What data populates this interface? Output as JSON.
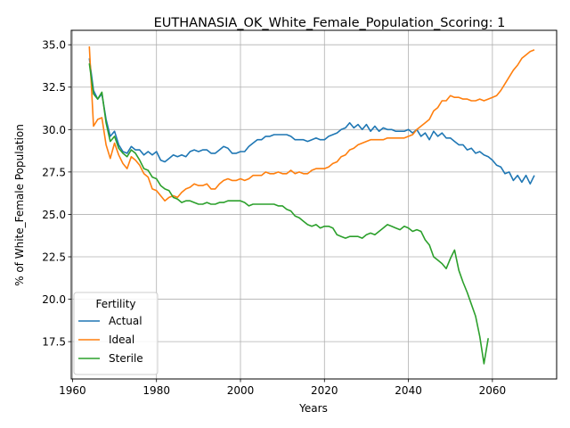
{
  "chart_data": {
    "type": "line",
    "title": "EUTHANASIA_OK_White_Female_Population_Scoring: 1",
    "xlabel": "Years",
    "ylabel": "% of White_Female Population",
    "xlim": [
      1959.7,
      2075.3
    ],
    "ylim": [
      15.3,
      35.85
    ],
    "xticks": [
      1960,
      1980,
      2000,
      2020,
      2040,
      2060
    ],
    "yticks": [
      17.5,
      20.0,
      22.5,
      25.0,
      27.5,
      30.0,
      32.5,
      35.0
    ],
    "ytick_labels": [
      "17.5",
      "20.0",
      "22.5",
      "25.0",
      "27.5",
      "30.0",
      "32.5",
      "35.0"
    ],
    "grid": true,
    "legend": {
      "title": "Fertility",
      "placement": "lower-left"
    },
    "series": [
      {
        "name": "Actual",
        "color": "#1f77b4",
        "points": [
          [
            1964,
            34.2
          ],
          [
            1965,
            32.3
          ],
          [
            1966,
            31.8
          ],
          [
            1967,
            32.1
          ],
          [
            1968,
            30.6
          ],
          [
            1969,
            29.6
          ],
          [
            1970,
            29.9
          ],
          [
            1971,
            29.1
          ],
          [
            1972,
            28.7
          ],
          [
            1973,
            28.6
          ],
          [
            1974,
            29.0
          ],
          [
            1975,
            28.8
          ],
          [
            1976,
            28.8
          ],
          [
            1977,
            28.5
          ],
          [
            1978,
            28.7
          ],
          [
            1979,
            28.5
          ],
          [
            1980,
            28.7
          ],
          [
            1981,
            28.2
          ],
          [
            1982,
            28.1
          ],
          [
            1983,
            28.3
          ],
          [
            1984,
            28.5
          ],
          [
            1985,
            28.4
          ],
          [
            1986,
            28.5
          ],
          [
            1987,
            28.4
          ],
          [
            1988,
            28.7
          ],
          [
            1989,
            28.8
          ],
          [
            1990,
            28.7
          ],
          [
            1991,
            28.8
          ],
          [
            1992,
            28.8
          ],
          [
            1993,
            28.6
          ],
          [
            1994,
            28.6
          ],
          [
            1995,
            28.8
          ],
          [
            1996,
            29.0
          ],
          [
            1997,
            28.9
          ],
          [
            1998,
            28.6
          ],
          [
            1999,
            28.6
          ],
          [
            2000,
            28.7
          ],
          [
            2001,
            28.7
          ],
          [
            2002,
            29.0
          ],
          [
            2003,
            29.2
          ],
          [
            2004,
            29.4
          ],
          [
            2005,
            29.4
          ],
          [
            2006,
            29.6
          ],
          [
            2007,
            29.6
          ],
          [
            2008,
            29.7
          ],
          [
            2009,
            29.7
          ],
          [
            2010,
            29.7
          ],
          [
            2011,
            29.7
          ],
          [
            2012,
            29.6
          ],
          [
            2013,
            29.4
          ],
          [
            2014,
            29.4
          ],
          [
            2015,
            29.4
          ],
          [
            2016,
            29.3
          ],
          [
            2017,
            29.4
          ],
          [
            2018,
            29.5
          ],
          [
            2019,
            29.4
          ],
          [
            2020,
            29.4
          ],
          [
            2021,
            29.6
          ],
          [
            2022,
            29.7
          ],
          [
            2023,
            29.8
          ],
          [
            2024,
            30.0
          ],
          [
            2025,
            30.1
          ],
          [
            2026,
            30.4
          ],
          [
            2027,
            30.1
          ],
          [
            2028,
            30.3
          ],
          [
            2029,
            30.0
          ],
          [
            2030,
            30.3
          ],
          [
            2031,
            29.9
          ],
          [
            2032,
            30.2
          ],
          [
            2033,
            29.9
          ],
          [
            2034,
            30.1
          ],
          [
            2035,
            30.0
          ],
          [
            2036,
            30.0
          ],
          [
            2037,
            29.9
          ],
          [
            2038,
            29.9
          ],
          [
            2039,
            29.9
          ],
          [
            2040,
            30.0
          ],
          [
            2041,
            29.8
          ],
          [
            2042,
            30.0
          ],
          [
            2043,
            29.6
          ],
          [
            2044,
            29.8
          ],
          [
            2045,
            29.4
          ],
          [
            2046,
            29.9
          ],
          [
            2047,
            29.6
          ],
          [
            2048,
            29.8
          ],
          [
            2049,
            29.5
          ],
          [
            2050,
            29.5
          ],
          [
            2051,
            29.3
          ],
          [
            2052,
            29.1
          ],
          [
            2053,
            29.1
          ],
          [
            2054,
            28.8
          ],
          [
            2055,
            28.9
          ],
          [
            2056,
            28.6
          ],
          [
            2057,
            28.7
          ],
          [
            2058,
            28.5
          ],
          [
            2059,
            28.4
          ],
          [
            2060,
            28.2
          ],
          [
            2061,
            27.9
          ],
          [
            2062,
            27.8
          ],
          [
            2063,
            27.4
          ],
          [
            2064,
            27.5
          ],
          [
            2065,
            27.0
          ],
          [
            2066,
            27.3
          ],
          [
            2067,
            26.9
          ],
          [
            2068,
            27.3
          ],
          [
            2069,
            26.8
          ],
          [
            2070,
            27.3
          ]
        ]
      },
      {
        "name": "Ideal",
        "color": "#ff7f0e",
        "points": [
          [
            1964,
            34.9
          ],
          [
            1965,
            30.2
          ],
          [
            1966,
            30.6
          ],
          [
            1967,
            30.7
          ],
          [
            1968,
            29.1
          ],
          [
            1969,
            28.3
          ],
          [
            1970,
            29.2
          ],
          [
            1971,
            28.5
          ],
          [
            1972,
            28.0
          ],
          [
            1973,
            27.7
          ],
          [
            1974,
            28.4
          ],
          [
            1975,
            28.2
          ],
          [
            1976,
            27.9
          ],
          [
            1977,
            27.4
          ],
          [
            1978,
            27.2
          ],
          [
            1979,
            26.5
          ],
          [
            1980,
            26.4
          ],
          [
            1981,
            26.1
          ],
          [
            1982,
            25.8
          ],
          [
            1983,
            26.0
          ],
          [
            1984,
            26.1
          ],
          [
            1985,
            26.0
          ],
          [
            1986,
            26.3
          ],
          [
            1987,
            26.5
          ],
          [
            1988,
            26.6
          ],
          [
            1989,
            26.8
          ],
          [
            1990,
            26.7
          ],
          [
            1991,
            26.7
          ],
          [
            1992,
            26.8
          ],
          [
            1993,
            26.5
          ],
          [
            1994,
            26.5
          ],
          [
            1995,
            26.8
          ],
          [
            1996,
            27.0
          ],
          [
            1997,
            27.1
          ],
          [
            1998,
            27.0
          ],
          [
            1999,
            27.0
          ],
          [
            2000,
            27.1
          ],
          [
            2001,
            27.0
          ],
          [
            2002,
            27.1
          ],
          [
            2003,
            27.3
          ],
          [
            2004,
            27.3
          ],
          [
            2005,
            27.3
          ],
          [
            2006,
            27.5
          ],
          [
            2007,
            27.4
          ],
          [
            2008,
            27.4
          ],
          [
            2009,
            27.5
          ],
          [
            2010,
            27.4
          ],
          [
            2011,
            27.4
          ],
          [
            2012,
            27.6
          ],
          [
            2013,
            27.4
          ],
          [
            2014,
            27.5
          ],
          [
            2015,
            27.4
          ],
          [
            2016,
            27.4
          ],
          [
            2017,
            27.6
          ],
          [
            2018,
            27.7
          ],
          [
            2019,
            27.7
          ],
          [
            2020,
            27.7
          ],
          [
            2021,
            27.8
          ],
          [
            2022,
            28.0
          ],
          [
            2023,
            28.1
          ],
          [
            2024,
            28.4
          ],
          [
            2025,
            28.5
          ],
          [
            2026,
            28.8
          ],
          [
            2027,
            28.9
          ],
          [
            2028,
            29.1
          ],
          [
            2029,
            29.2
          ],
          [
            2030,
            29.3
          ],
          [
            2031,
            29.4
          ],
          [
            2032,
            29.4
          ],
          [
            2033,
            29.4
          ],
          [
            2034,
            29.4
          ],
          [
            2035,
            29.5
          ],
          [
            2036,
            29.5
          ],
          [
            2037,
            29.5
          ],
          [
            2038,
            29.5
          ],
          [
            2039,
            29.5
          ],
          [
            2040,
            29.6
          ],
          [
            2041,
            29.7
          ],
          [
            2042,
            30.0
          ],
          [
            2043,
            30.2
          ],
          [
            2044,
            30.4
          ],
          [
            2045,
            30.6
          ],
          [
            2046,
            31.1
          ],
          [
            2047,
            31.3
          ],
          [
            2048,
            31.7
          ],
          [
            2049,
            31.7
          ],
          [
            2050,
            32.0
          ],
          [
            2051,
            31.9
          ],
          [
            2052,
            31.9
          ],
          [
            2053,
            31.8
          ],
          [
            2054,
            31.8
          ],
          [
            2055,
            31.7
          ],
          [
            2056,
            31.7
          ],
          [
            2057,
            31.8
          ],
          [
            2058,
            31.7
          ],
          [
            2059,
            31.8
          ],
          [
            2060,
            31.9
          ],
          [
            2061,
            32.0
          ],
          [
            2062,
            32.3
          ],
          [
            2063,
            32.7
          ],
          [
            2064,
            33.1
          ],
          [
            2065,
            33.5
          ],
          [
            2066,
            33.8
          ],
          [
            2067,
            34.2
          ],
          [
            2068,
            34.4
          ],
          [
            2069,
            34.6
          ],
          [
            2070,
            34.7
          ]
        ]
      },
      {
        "name": "Sterile",
        "color": "#2ca02c",
        "points": [
          [
            1964,
            33.9
          ],
          [
            1965,
            32.1
          ],
          [
            1966,
            31.8
          ],
          [
            1967,
            32.2
          ],
          [
            1968,
            30.4
          ],
          [
            1969,
            29.3
          ],
          [
            1970,
            29.6
          ],
          [
            1971,
            28.9
          ],
          [
            1972,
            28.6
          ],
          [
            1973,
            28.4
          ],
          [
            1974,
            28.8
          ],
          [
            1975,
            28.6
          ],
          [
            1976,
            28.2
          ],
          [
            1977,
            27.7
          ],
          [
            1978,
            27.6
          ],
          [
            1979,
            27.2
          ],
          [
            1980,
            27.1
          ],
          [
            1981,
            26.7
          ],
          [
            1982,
            26.5
          ],
          [
            1983,
            26.4
          ],
          [
            1984,
            26.0
          ],
          [
            1985,
            25.9
          ],
          [
            1986,
            25.7
          ],
          [
            1987,
            25.8
          ],
          [
            1988,
            25.8
          ],
          [
            1989,
            25.7
          ],
          [
            1990,
            25.6
          ],
          [
            1991,
            25.6
          ],
          [
            1992,
            25.7
          ],
          [
            1993,
            25.6
          ],
          [
            1994,
            25.6
          ],
          [
            1995,
            25.7
          ],
          [
            1996,
            25.7
          ],
          [
            1997,
            25.8
          ],
          [
            1998,
            25.8
          ],
          [
            1999,
            25.8
          ],
          [
            2000,
            25.8
          ],
          [
            2001,
            25.7
          ],
          [
            2002,
            25.5
          ],
          [
            2003,
            25.6
          ],
          [
            2004,
            25.6
          ],
          [
            2005,
            25.6
          ],
          [
            2006,
            25.6
          ],
          [
            2007,
            25.6
          ],
          [
            2008,
            25.6
          ],
          [
            2009,
            25.5
          ],
          [
            2010,
            25.5
          ],
          [
            2011,
            25.3
          ],
          [
            2012,
            25.2
          ],
          [
            2013,
            24.9
          ],
          [
            2014,
            24.8
          ],
          [
            2015,
            24.6
          ],
          [
            2016,
            24.4
          ],
          [
            2017,
            24.3
          ],
          [
            2018,
            24.4
          ],
          [
            2019,
            24.2
          ],
          [
            2020,
            24.3
          ],
          [
            2021,
            24.3
          ],
          [
            2022,
            24.2
          ],
          [
            2023,
            23.8
          ],
          [
            2024,
            23.7
          ],
          [
            2025,
            23.6
          ],
          [
            2026,
            23.7
          ],
          [
            2027,
            23.7
          ],
          [
            2028,
            23.7
          ],
          [
            2029,
            23.6
          ],
          [
            2030,
            23.8
          ],
          [
            2031,
            23.9
          ],
          [
            2032,
            23.8
          ],
          [
            2033,
            24.0
          ],
          [
            2034,
            24.2
          ],
          [
            2035,
            24.4
          ],
          [
            2036,
            24.3
          ],
          [
            2037,
            24.2
          ],
          [
            2038,
            24.1
          ],
          [
            2039,
            24.3
          ],
          [
            2040,
            24.2
          ],
          [
            2041,
            24.0
          ],
          [
            2042,
            24.1
          ],
          [
            2043,
            24.0
          ],
          [
            2044,
            23.5
          ],
          [
            2045,
            23.2
          ],
          [
            2046,
            22.5
          ],
          [
            2047,
            22.3
          ],
          [
            2048,
            22.1
          ],
          [
            2049,
            21.8
          ],
          [
            2050,
            22.4
          ],
          [
            2051,
            22.9
          ],
          [
            2052,
            21.7
          ],
          [
            2053,
            21.0
          ],
          [
            2054,
            20.4
          ],
          [
            2055,
            19.7
          ],
          [
            2056,
            19.0
          ],
          [
            2057,
            17.8
          ],
          [
            2058,
            16.2
          ],
          [
            2059,
            17.7
          ]
        ]
      }
    ]
  }
}
